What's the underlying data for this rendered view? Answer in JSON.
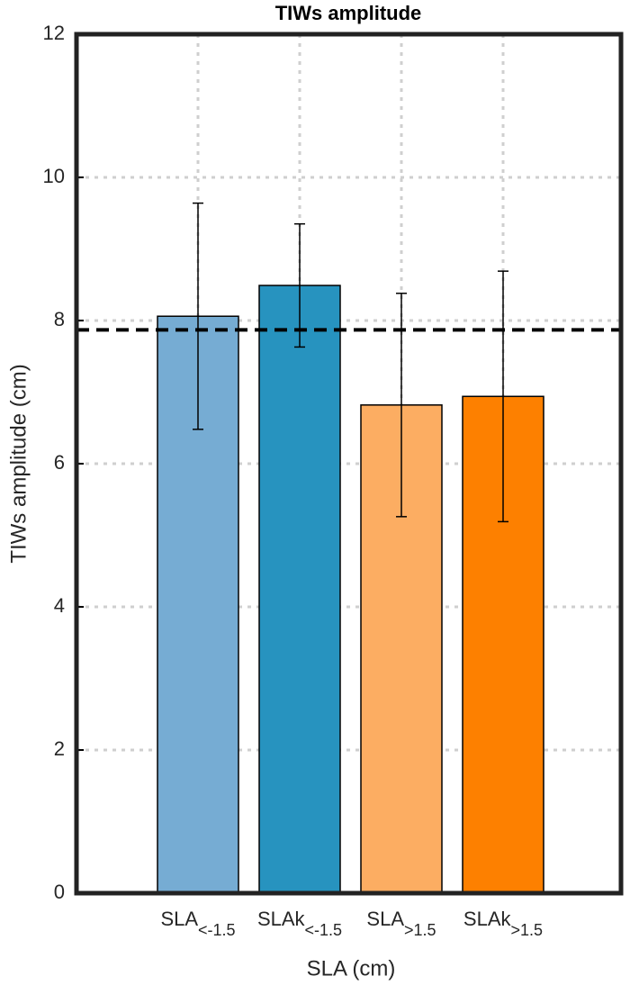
{
  "chart_data": {
    "type": "bar",
    "title": "TIWs amplitude",
    "x_label": "SLA (cm)",
    "y_label": "TIWs amplitude (cm)",
    "categories": [
      {
        "label": "SLA",
        "subscript": "<-1.5"
      },
      {
        "label": "SLAk",
        "subscript": "<-1.5"
      },
      {
        "label": "SLA",
        "subscript": ">1.5"
      },
      {
        "label": "SLAk",
        "subscript": ">1.5"
      }
    ],
    "values": [
      8.06,
      8.49,
      6.82,
      6.94
    ],
    "errors": [
      1.58,
      0.86,
      1.56,
      1.75
    ],
    "colors": [
      "#76acd3",
      "#2793bf",
      "#fcad62",
      "#fd8000"
    ],
    "reference_line": 7.87,
    "ylim": [
      0,
      12
    ],
    "yticks": [
      0,
      2,
      4,
      6,
      8,
      10,
      12
    ],
    "grid": true
  }
}
